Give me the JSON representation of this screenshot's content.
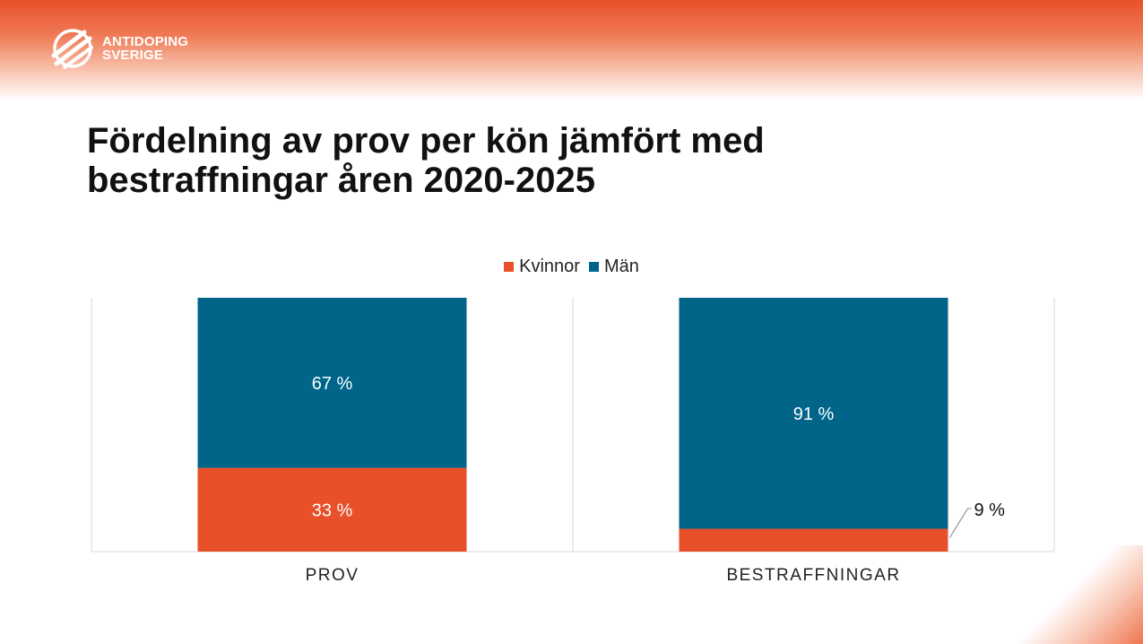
{
  "brand": {
    "line1": "ANTIDOPING",
    "line2": "SVERIGE"
  },
  "title": {
    "line1": "Fördelning av prov per kön jämfört med",
    "line2": "bestraffningar åren 2020-2025"
  },
  "colors": {
    "accent": "#e8502a",
    "kvinnor": "#e8502a",
    "man": "#006589"
  },
  "chart_data": {
    "type": "bar",
    "stacked": true,
    "percent_stacked": true,
    "categories": [
      "PROV",
      "BESTRAFFNINGAR"
    ],
    "series": [
      {
        "name": "Kvinnor",
        "values": [
          33,
          9
        ],
        "labels": [
          "33 %",
          "9 %"
        ],
        "color": "#e8502a"
      },
      {
        "name": "Män",
        "values": [
          67,
          91
        ],
        "labels": [
          "67 %",
          "91 %"
        ],
        "color": "#006589"
      }
    ],
    "ylim": [
      0,
      100
    ],
    "legend": "top-center",
    "grid": false
  }
}
